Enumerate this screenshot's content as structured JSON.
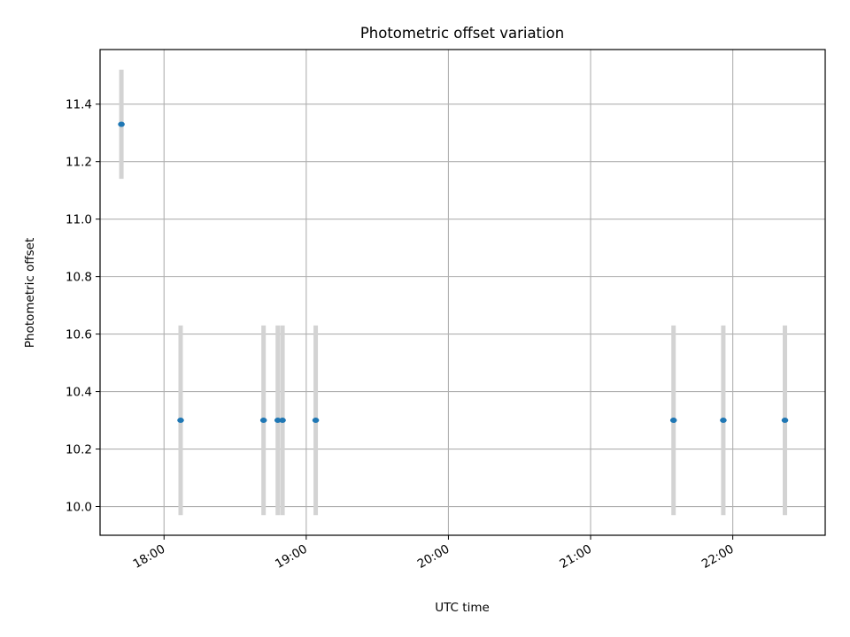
{
  "chart_data": {
    "type": "scatter",
    "title": "Photometric offset variation",
    "xlabel": "UTC time",
    "ylabel": "Photometric offset",
    "x_tick_labels": [
      "18:00",
      "19:00",
      "20:00",
      "21:00",
      "22:00"
    ],
    "x_ticks": [
      "18:00",
      "19:00",
      "20:00",
      "21:00",
      "22:00"
    ],
    "y_ticks": [
      10.0,
      10.2,
      10.4,
      10.6,
      10.8,
      11.0,
      11.2,
      11.4
    ],
    "y_tick_labels": [
      "10.0",
      "10.2",
      "10.4",
      "10.6",
      "10.8",
      "11.0",
      "11.2",
      "11.4"
    ],
    "xlim": [
      "17:33",
      "22:39"
    ],
    "ylim": [
      9.9,
      11.59
    ],
    "grid": true,
    "series": [
      {
        "x": [
          "17:42",
          "18:07",
          "18:42",
          "18:48",
          "18:50",
          "19:04",
          "21:35",
          "21:56",
          "22:22"
        ],
        "y": [
          11.33,
          10.3,
          10.3,
          10.3,
          10.3,
          10.3,
          10.3,
          10.3,
          10.3
        ],
        "y_err": [
          0.19,
          0.33,
          0.33,
          0.33,
          0.33,
          0.33,
          0.33,
          0.33,
          0.33
        ]
      }
    ],
    "colors": {
      "point": "#1f77b4",
      "error_bar": "#d3d3d3",
      "grid": "#b0b0b0",
      "axes": "#000000"
    }
  }
}
